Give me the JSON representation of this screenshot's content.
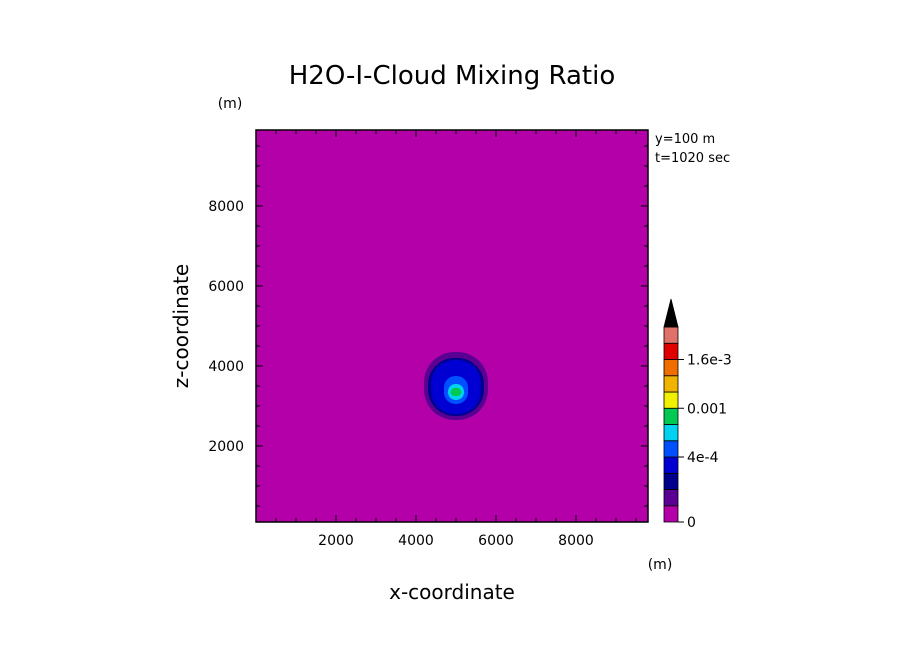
{
  "colors": {
    "background": "#b400a8",
    "frame": "#000000",
    "levels": [
      "#b400a8",
      "#5a0092",
      "#00008c",
      "#0000d2",
      "#0050ff",
      "#00d2f0",
      "#00c850",
      "#f0f000",
      "#f0b400",
      "#f06e00",
      "#e10000",
      "#e0706a"
    ]
  },
  "chart_data": {
    "type": "heatmap",
    "title": "H2O-I-Cloud Mixing Ratio",
    "xlabel": "x-coordinate",
    "ylabel": "z-coordinate",
    "x_unit": "(m)",
    "y_unit": "(m)",
    "xlim": [
      0,
      9800
    ],
    "ylim": [
      100,
      9900
    ],
    "x_ticks": [
      2000,
      4000,
      6000,
      8000
    ],
    "y_ticks": [
      2000,
      4000,
      6000,
      8000
    ],
    "x_tick_labels": [
      "2000",
      "4000",
      "6000",
      "8000"
    ],
    "y_tick_labels": [
      "2000",
      "4000",
      "6000",
      "8000"
    ],
    "annotations": [
      "y=100 m",
      "t=1020 sec"
    ],
    "colorbar": {
      "levels": [
        0,
        0.0001,
        0.0002,
        0.0003,
        0.0004,
        0.0006,
        0.0008,
        0.001,
        0.0012,
        0.0014,
        0.0016,
        0.0018,
        0.002
      ],
      "tick_values": [
        0,
        0.0004,
        0.001,
        0.0016
      ],
      "tick_labels": [
        "0",
        "4e-4",
        "0.001",
        "1.6e-3"
      ],
      "extend": "max"
    },
    "feature": {
      "center_x": 5000,
      "center_z": 3450,
      "contours": [
        {
          "level": 0.0001,
          "half_width": 800,
          "top": 4350,
          "bottom": 2650
        },
        {
          "level": 0.0002,
          "half_width": 700,
          "top": 4200,
          "bottom": 2750
        },
        {
          "level": 0.0003,
          "half_width": 620,
          "top": 4150,
          "bottom": 2800
        },
        {
          "level": 0.0004,
          "half_width": 300,
          "top": 3750,
          "bottom": 3050
        },
        {
          "level": 0.0006,
          "half_width": 200,
          "top": 3550,
          "bottom": 3150
        },
        {
          "level": 0.0008,
          "half_width": 130,
          "top": 3450,
          "bottom": 3250
        }
      ]
    }
  }
}
